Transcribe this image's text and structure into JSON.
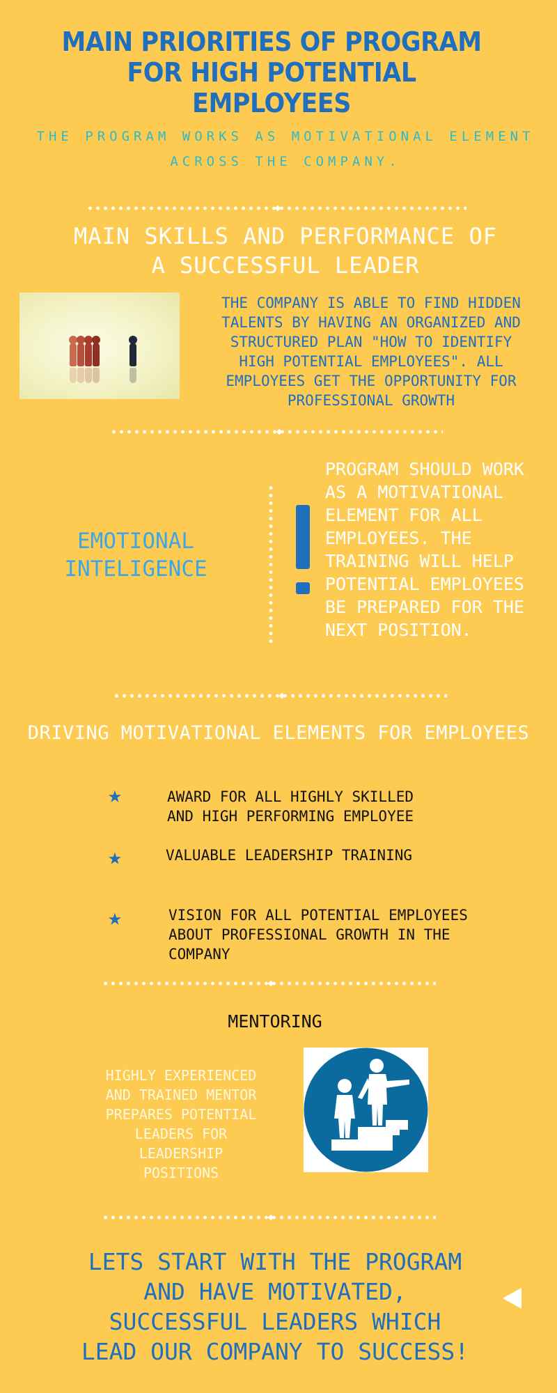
{
  "header": {
    "title": "MAIN PRIORITIES OF PROGRAM FOR HIGH POTENTIAL EMPLOYEES",
    "subtitle": "THE PROGRAM WORKS AS MOTIVATIONAL ELEMENT ACROSS THE COMPANY."
  },
  "skills": {
    "heading": "MAIN SKILLS AND PERFORMANCE OF A SUCCESSFUL LEADER",
    "text": "THE COMPANY IS ABLE TO FIND HIDDEN TALENTS BY HAVING AN ORGANIZED AND STRUCTURED PLAN \"HOW TO IDENTIFY HIGH POTENTIAL EMPLOYEES\". ALL EMPLOYEES GET THE OPPORTUNITY FOR PROFESSIONAL GROWTH"
  },
  "emotional": {
    "label": "EMOTIONAL INTELIGENCE",
    "text": "PROGRAM SHOULD WORK AS A MOTIVATIONAL ELEMENT FOR ALL EMPLOYEES. THE TRAINING WILL HELP POTENTIAL EMPLOYEES BE PREPARED FOR THE NEXT POSITION."
  },
  "motivation": {
    "heading": "DRIVING MOTIVATIONAL ELEMENTS FOR EMPLOYEES",
    "items": [
      "AWARD FOR ALL HIGHLY SKILLED AND HIGH PERFORMING EMPLOYEE",
      "VALUABLE LEADERSHIP TRAINING",
      "VISION FOR ALL POTENTIAL EMPLOYEES ABOUT PROFESSIONAL GROWTH IN THE COMPANY"
    ]
  },
  "mentoring": {
    "heading": "MENTORING",
    "text": "HIGHLY EXPERIENCED AND TRAINED MENTOR PREPARES POTENTIAL LEADERS FOR LEADERSHIP POSITIONS"
  },
  "closing": {
    "text": "LETS START WITH THE PROGRAM AND HAVE MOTIVATED, SUCCESSFUL LEADERS WHICH LEAD OUR COMPANY TO SUCCESS!"
  },
  "icons": [
    "star-icon",
    "mentor-stairs-icon",
    "back-arrow-icon",
    "chess-pawns-image"
  ],
  "colors": {
    "background": "#FECB52",
    "primary_blue": "#1F6FBE",
    "light_blue": "#3DA6E3",
    "teal": "#2FB8C8",
    "white": "#FFFFFF",
    "black": "#111111",
    "icon_blue": "#0B6A9E"
  }
}
